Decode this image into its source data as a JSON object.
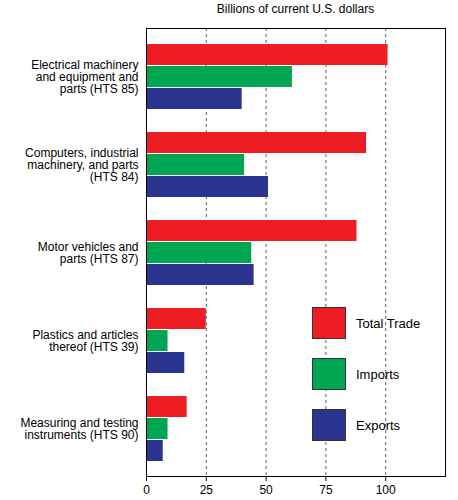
{
  "chart_data": {
    "type": "bar",
    "orientation": "horizontal",
    "xlabel": "Billions of current U.S. dollars",
    "categories": [
      "Electrical machinery and equipment and parts (HTS 85)",
      "Computers, industrial machinery, and parts (HTS 84)",
      "Motor vehicles and parts (HTS 87)",
      "Plastics and articles thereof (HTS 39)",
      "Measuring and testing instruments (HTS 90)"
    ],
    "series": [
      {
        "name": "Total Trade",
        "color": "#ee1d23",
        "values": [
          101,
          92,
          88,
          25,
          17
        ]
      },
      {
        "name": "Imports",
        "color": "#00a551",
        "values": [
          61,
          41,
          44,
          9,
          9
        ]
      },
      {
        "name": "Exports",
        "color": "#2b3590",
        "values": [
          40,
          51,
          45,
          16,
          7
        ]
      }
    ],
    "xlim": [
      0,
      125
    ],
    "xticks": [
      0,
      25,
      50,
      75,
      100
    ],
    "grid": true,
    "legend": "lower right"
  }
}
